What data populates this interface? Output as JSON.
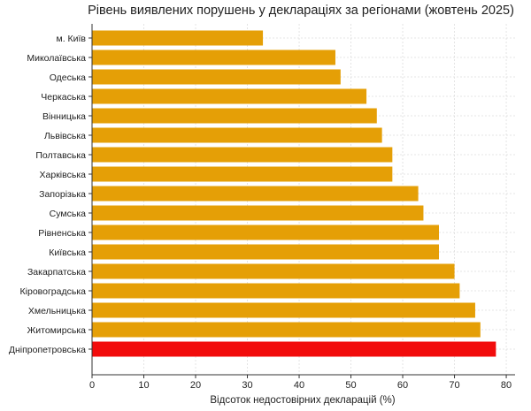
{
  "chart_data": {
    "type": "bar",
    "orientation": "horizontal",
    "title": "Рівень виявлених порушень у деклараціях за регіонами (жовтень 2025)",
    "xlabel": "Відсоток недостовірних декларацій (%)",
    "ylabel": "",
    "xlim": [
      0,
      81.7
    ],
    "xticks": [
      0,
      10,
      20,
      30,
      40,
      50,
      60,
      70,
      80
    ],
    "grid": "x",
    "categories": [
      "м. Київ",
      "Миколаївська",
      "Одеська",
      "Черкаська",
      "Вінницька",
      "Львівська",
      "Полтавська",
      "Харківська",
      "Запорізька",
      "Сумська",
      "Рівненська",
      "Київська",
      "Закарпатська",
      "Кіровоградська",
      "Хмельницька",
      "Житомирська",
      "Дніпропетровська"
    ],
    "values": [
      33,
      47,
      48,
      53,
      55,
      56,
      58,
      58,
      63,
      64,
      67,
      67,
      70,
      71,
      74,
      75,
      78
    ],
    "colors": {
      "default": "#E59F06",
      "highlight": "#F20C0C"
    },
    "highlighted": "Дніпропетровська"
  }
}
